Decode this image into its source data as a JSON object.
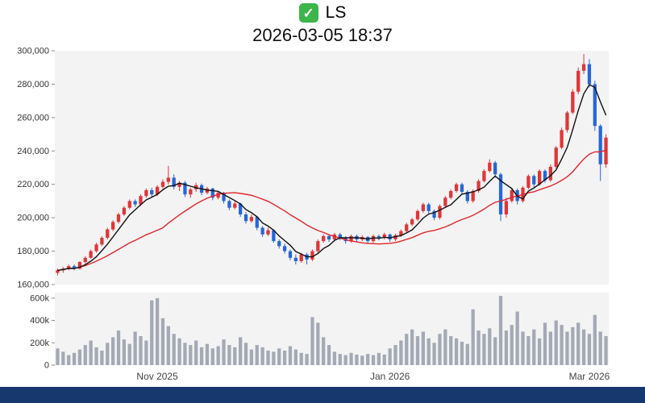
{
  "header": {
    "symbol": "LS",
    "checkbox_glyph": "✓",
    "checkbox_color": "#3cb54a",
    "datetime": "2026-03-05 18:37"
  },
  "footer": {
    "color": "#17386e"
  },
  "chart_data": {
    "type": "candlestick",
    "title": "LS",
    "timestamp_label": "2026-03-05 18:37",
    "grid": false,
    "legend": "none",
    "colors": {
      "up": "#e03537",
      "down": "#2667d6",
      "ma_short": "#111111",
      "ma_long": "#e0262b",
      "volume": "#a3a9b5",
      "plot_bg": "#f3f3f4",
      "axis_text": "#333333",
      "tick": "#888888"
    },
    "price_axis": {
      "min": 160000,
      "max": 300000,
      "ticks": [
        {
          "value": 160000,
          "label": "160,000"
        },
        {
          "value": 180000,
          "label": "180,000"
        },
        {
          "value": 200000,
          "label": "200,000"
        },
        {
          "value": 220000,
          "label": "220,000"
        },
        {
          "value": 240000,
          "label": "240,000"
        },
        {
          "value": 260000,
          "label": "260,000"
        },
        {
          "value": 280000,
          "label": "280,000"
        },
        {
          "value": 300000,
          "label": "300,000"
        }
      ]
    },
    "volume_axis": {
      "min": 0,
      "max": 650000,
      "ticks": [
        {
          "value": 0,
          "label": "0"
        },
        {
          "value": 200000,
          "label": "200k"
        },
        {
          "value": 400000,
          "label": "400k"
        },
        {
          "value": 600000,
          "label": "600k"
        }
      ]
    },
    "x_axis": {
      "ticks": [
        {
          "index": 18,
          "label": "Nov 2025"
        },
        {
          "index": 60,
          "label": "Jan 2026"
        },
        {
          "index": 96,
          "label": "Mar 2026"
        }
      ]
    },
    "overlays": [
      {
        "name": "MA-short",
        "period": 5,
        "color_key": "ma_short"
      },
      {
        "name": "MA-long",
        "period": 20,
        "color_key": "ma_long"
      }
    ],
    "candles": {
      "fields": [
        "open",
        "high",
        "low",
        "close",
        "volume"
      ],
      "rows": [
        [
          167000,
          169500,
          165500,
          168500,
          150000
        ],
        [
          168500,
          170500,
          167000,
          169500,
          120000
        ],
        [
          169500,
          172000,
          168500,
          171000,
          90000
        ],
        [
          171000,
          172000,
          168500,
          169500,
          110000
        ],
        [
          169500,
          174000,
          169000,
          173500,
          140000
        ],
        [
          173500,
          177000,
          172500,
          176000,
          180000
        ],
        [
          176000,
          181000,
          175500,
          180000,
          220000
        ],
        [
          180000,
          185000,
          179000,
          184000,
          160000
        ],
        [
          184000,
          189000,
          183000,
          188000,
          130000
        ],
        [
          188000,
          194000,
          187000,
          193000,
          200000
        ],
        [
          193000,
          198500,
          192000,
          197500,
          250000
        ],
        [
          197500,
          203000,
          196500,
          202000,
          310000
        ],
        [
          202000,
          207000,
          201000,
          206000,
          230000
        ],
        [
          206000,
          211000,
          205000,
          210000,
          190000
        ],
        [
          210000,
          211000,
          206500,
          208000,
          300000
        ],
        [
          208000,
          214000,
          207000,
          213000,
          260000
        ],
        [
          213000,
          217500,
          212000,
          216500,
          220000
        ],
        [
          216500,
          218000,
          212500,
          214000,
          580000
        ],
        [
          214000,
          219500,
          213000,
          218500,
          600000
        ],
        [
          218500,
          223000,
          217500,
          221500,
          420000
        ],
        [
          221500,
          231000,
          220000,
          224000,
          350000
        ],
        [
          224000,
          226000,
          217000,
          218500,
          280000
        ],
        [
          218500,
          222000,
          216000,
          221000,
          240000
        ],
        [
          221000,
          222000,
          212500,
          214000,
          200000
        ],
        [
          214000,
          218000,
          212000,
          217000,
          180000
        ],
        [
          217000,
          221000,
          215500,
          219500,
          220000
        ],
        [
          219500,
          220500,
          213500,
          215000,
          160000
        ],
        [
          215000,
          218500,
          214000,
          217500,
          190000
        ],
        [
          217500,
          218000,
          210500,
          212000,
          150000
        ],
        [
          212000,
          216000,
          211000,
          215000,
          170000
        ],
        [
          215000,
          215500,
          208500,
          210000,
          230000
        ],
        [
          210000,
          211000,
          204500,
          206000,
          180000
        ],
        [
          206000,
          210000,
          205000,
          208500,
          160000
        ],
        [
          208500,
          209000,
          200500,
          202000,
          250000
        ],
        [
          202000,
          203500,
          196500,
          198000,
          200000
        ],
        [
          198000,
          202000,
          197000,
          200500,
          140000
        ],
        [
          200500,
          201000,
          192500,
          194000,
          180000
        ],
        [
          194000,
          195000,
          188500,
          190000,
          160000
        ],
        [
          190000,
          194000,
          189000,
          192500,
          130000
        ],
        [
          192500,
          193000,
          185000,
          186000,
          120000
        ],
        [
          186000,
          187000,
          181500,
          183000,
          150000
        ],
        [
          183000,
          184500,
          178500,
          180000,
          130000
        ],
        [
          180000,
          181000,
          174500,
          176000,
          170000
        ],
        [
          176000,
          178000,
          172000,
          174000,
          140000
        ],
        [
          174000,
          179000,
          173000,
          178000,
          110000
        ],
        [
          178000,
          179000,
          172000,
          175000,
          100000
        ],
        [
          175000,
          181000,
          174000,
          180000,
          430000
        ],
        [
          180000,
          187000,
          179000,
          186000,
          380000
        ],
        [
          186000,
          190000,
          185000,
          189000,
          250000
        ],
        [
          189000,
          190000,
          185500,
          187000,
          180000
        ],
        [
          187000,
          191000,
          186000,
          190000,
          120000
        ],
        [
          190000,
          191000,
          186500,
          188000,
          100000
        ],
        [
          188000,
          189000,
          184500,
          186000,
          90000
        ],
        [
          186000,
          190000,
          185000,
          189000,
          110000
        ],
        [
          189000,
          190000,
          185500,
          187000,
          95000
        ],
        [
          187000,
          189500,
          186000,
          188500,
          85000
        ],
        [
          188500,
          189000,
          184500,
          186000,
          100000
        ],
        [
          186000,
          190000,
          185000,
          189000,
          90000
        ],
        [
          189000,
          190000,
          186500,
          188000,
          110000
        ],
        [
          188000,
          191000,
          187000,
          190000,
          95000
        ],
        [
          190000,
          190500,
          185500,
          187000,
          150000
        ],
        [
          187000,
          190500,
          186000,
          189500,
          180000
        ],
        [
          189500,
          193000,
          188500,
          192000,
          220000
        ],
        [
          192000,
          197000,
          191000,
          196000,
          280000
        ],
        [
          196000,
          200000,
          195000,
          199000,
          320000
        ],
        [
          199000,
          205000,
          198000,
          204000,
          260000
        ],
        [
          204000,
          209000,
          203000,
          208000,
          300000
        ],
        [
          208000,
          209000,
          202500,
          204000,
          240000
        ],
        [
          204000,
          205000,
          198500,
          200000,
          200000
        ],
        [
          200000,
          208000,
          199000,
          207000,
          280000
        ],
        [
          207000,
          213000,
          206000,
          212000,
          320000
        ],
        [
          212000,
          217000,
          211000,
          216000,
          260000
        ],
        [
          216000,
          221000,
          215000,
          220000,
          240000
        ],
        [
          220000,
          221000,
          214000,
          215500,
          210000
        ],
        [
          215500,
          216500,
          208500,
          210000,
          190000
        ],
        [
          210000,
          217000,
          209000,
          216000,
          500000
        ],
        [
          216000,
          223000,
          215000,
          222000,
          310000
        ],
        [
          222000,
          229000,
          221000,
          228000,
          280000
        ],
        [
          228000,
          235000,
          227000,
          233000,
          330000
        ],
        [
          233000,
          234000,
          224000,
          226000,
          250000
        ],
        [
          226000,
          227000,
          198000,
          202000,
          620000
        ],
        [
          202000,
          212000,
          200000,
          210000,
          310000
        ],
        [
          210000,
          218000,
          209000,
          216500,
          360000
        ],
        [
          216500,
          217500,
          208000,
          210000,
          480000
        ],
        [
          210000,
          219000,
          209000,
          218000,
          300000
        ],
        [
          218000,
          226000,
          217000,
          225000,
          260000
        ],
        [
          225000,
          226000,
          218500,
          220000,
          320000
        ],
        [
          220000,
          229000,
          219000,
          228000,
          240000
        ],
        [
          228000,
          229000,
          221000,
          222500,
          380000
        ],
        [
          222500,
          232000,
          221500,
          230500,
          300000
        ],
        [
          230500,
          243000,
          229500,
          242000,
          400000
        ],
        [
          242000,
          254000,
          241000,
          252500,
          360000
        ],
        [
          252500,
          264000,
          251000,
          263000,
          300000
        ],
        [
          263000,
          277000,
          262000,
          275500,
          340000
        ],
        [
          275500,
          290000,
          274000,
          288000,
          380000
        ],
        [
          288000,
          298000,
          286000,
          292000,
          320000
        ],
        [
          292000,
          295000,
          278000,
          280000,
          280000
        ],
        [
          280000,
          282000,
          252000,
          255000,
          450000
        ],
        [
          255000,
          256000,
          222000,
          232000,
          300000
        ],
        [
          232000,
          250000,
          230000,
          248000,
          260000
        ]
      ]
    }
  }
}
